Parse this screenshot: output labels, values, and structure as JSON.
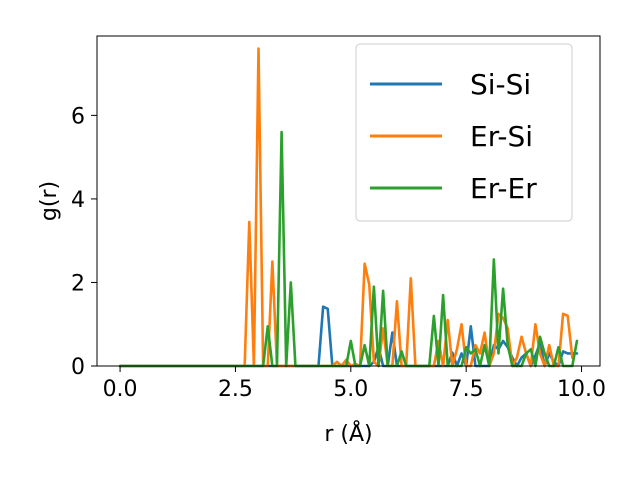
{
  "chart_data": {
    "type": "line",
    "title": "",
    "xlabel": "r (Å)",
    "ylabel": "g(r)",
    "xlim": [
      -0.5,
      10.4
    ],
    "ylim": [
      0,
      7.9
    ],
    "xticks": [
      0.0,
      2.5,
      5.0,
      7.5,
      10.0
    ],
    "xtick_labels": [
      "0.0",
      "2.5",
      "5.0",
      "7.5",
      "10.0"
    ],
    "yticks": [
      0,
      2,
      4,
      6
    ],
    "ytick_labels": [
      "0",
      "2",
      "4",
      "6"
    ],
    "grid": false,
    "legend_position": "top-right",
    "series": [
      {
        "name": "Si-Si",
        "color": "#1f77b4",
        "x": [
          0.0,
          4.3,
          4.4,
          4.5,
          4.6,
          5.4,
          5.5,
          5.6,
          5.7,
          5.8,
          5.9,
          6.0,
          7.1,
          7.2,
          7.3,
          7.4,
          7.5,
          7.6,
          7.7,
          8.0,
          8.1,
          8.2,
          8.3,
          8.4,
          8.5,
          8.6,
          8.7,
          8.8,
          8.9,
          9.0,
          9.1,
          9.2,
          9.3,
          9.4,
          9.5,
          9.6,
          9.7,
          9.8,
          9.9
        ],
        "y": [
          0.0,
          0.0,
          1.42,
          1.37,
          0.0,
          0.0,
          0.1,
          0.45,
          0.0,
          0.0,
          0.8,
          0.0,
          0.0,
          0.32,
          0.0,
          0.3,
          0.0,
          0.95,
          0.0,
          0.0,
          0.5,
          0.4,
          0.6,
          0.45,
          0.2,
          0.0,
          0.2,
          0.3,
          0.0,
          0.25,
          0.55,
          0.0,
          0.3,
          0.1,
          0.0,
          0.35,
          0.3,
          0.3,
          0.3
        ]
      },
      {
        "name": "Er-Si",
        "color": "#ff7f0e",
        "x": [
          0.0,
          2.7,
          2.8,
          2.9,
          3.0,
          3.1,
          3.2,
          3.3,
          3.4,
          4.6,
          4.7,
          4.8,
          4.9,
          5.0,
          5.1,
          5.2,
          5.3,
          5.4,
          5.5,
          5.6,
          5.7,
          5.8,
          5.9,
          6.0,
          6.1,
          6.2,
          6.3,
          6.4,
          6.5,
          6.6,
          6.7,
          6.8,
          6.9,
          7.0,
          7.1,
          7.2,
          7.3,
          7.4,
          7.5,
          7.6,
          7.7,
          7.8,
          7.9,
          8.0,
          8.1,
          8.2,
          8.3,
          8.4,
          8.5,
          8.6,
          8.7,
          8.8,
          8.9,
          9.0,
          9.1,
          9.2,
          9.3,
          9.4,
          9.5,
          9.6,
          9.7,
          9.8
        ],
        "y": [
          0.0,
          0.0,
          3.45,
          0.0,
          7.6,
          0.0,
          0.0,
          2.5,
          0.0,
          0.0,
          0.1,
          0.0,
          0.15,
          0.0,
          0.05,
          0.0,
          2.45,
          1.95,
          0.1,
          0.0,
          0.9,
          0.0,
          0.0,
          1.55,
          0.0,
          0.0,
          2.1,
          0.0,
          0.0,
          0.0,
          0.0,
          0.0,
          0.6,
          0.0,
          1.1,
          0.0,
          0.4,
          1.0,
          0.0,
          0.0,
          0.5,
          0.3,
          0.8,
          0.0,
          0.3,
          1.25,
          1.15,
          0.9,
          0.0,
          0.2,
          0.7,
          0.3,
          0.0,
          1.0,
          0.3,
          0.0,
          0.5,
          0.0,
          0.0,
          1.25,
          1.2,
          0.2
        ]
      },
      {
        "name": "Er-Er",
        "color": "#2ca02c",
        "x": [
          0.0,
          3.1,
          3.2,
          3.3,
          3.4,
          3.5,
          3.6,
          3.7,
          3.8,
          4.9,
          5.0,
          5.1,
          5.2,
          5.3,
          5.4,
          5.5,
          5.6,
          5.7,
          5.8,
          5.9,
          6.0,
          6.1,
          6.2,
          6.3,
          6.4,
          6.5,
          6.6,
          6.7,
          6.8,
          6.9,
          7.0,
          7.1,
          7.2,
          7.3,
          7.4,
          7.5,
          7.6,
          7.7,
          7.8,
          7.9,
          8.0,
          8.1,
          8.2,
          8.3,
          8.4,
          8.5,
          8.6,
          8.7,
          8.8,
          8.9,
          9.0,
          9.1,
          9.2,
          9.3,
          9.4,
          9.5,
          9.6,
          9.7,
          9.8,
          9.9
        ],
        "y": [
          0.0,
          0.0,
          0.95,
          0.0,
          0.0,
          5.6,
          0.0,
          2.0,
          0.0,
          0.0,
          0.6,
          0.0,
          0.0,
          0.5,
          0.0,
          1.9,
          0.0,
          1.8,
          0.0,
          0.0,
          0.0,
          0.35,
          0.0,
          0.0,
          0.0,
          0.0,
          0.0,
          0.0,
          1.2,
          0.0,
          1.7,
          0.0,
          0.0,
          0.0,
          0.0,
          0.45,
          0.3,
          0.4,
          0.0,
          0.5,
          0.0,
          2.55,
          0.3,
          1.85,
          0.5,
          0.0,
          0.0,
          0.0,
          0.3,
          0.4,
          0.0,
          0.7,
          0.3,
          0.0,
          0.0,
          0.45,
          0.0,
          0.0,
          0.0,
          0.6
        ]
      }
    ]
  }
}
